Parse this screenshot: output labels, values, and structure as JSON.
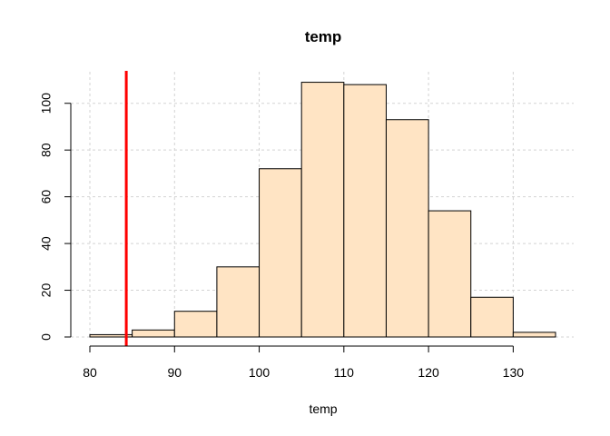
{
  "chart_data": {
    "type": "bar",
    "title": "temp",
    "xlabel": "temp",
    "ylabel": "",
    "bin_edges": [
      80,
      85,
      90,
      95,
      100,
      105,
      110,
      115,
      120,
      125,
      130,
      135
    ],
    "values": [
      1,
      3,
      11,
      30,
      72,
      109,
      108,
      93,
      54,
      17,
      2
    ],
    "xlim": [
      80,
      135
    ],
    "ylim": [
      0,
      110
    ],
    "x_ticks": [
      80,
      90,
      100,
      110,
      120,
      130
    ],
    "y_ticks": [
      0,
      20,
      40,
      60,
      80,
      100
    ],
    "grid": true,
    "bar_color": "#ffe4c4",
    "reference_line": {
      "x": 84.3,
      "color": "#ff0000"
    }
  }
}
